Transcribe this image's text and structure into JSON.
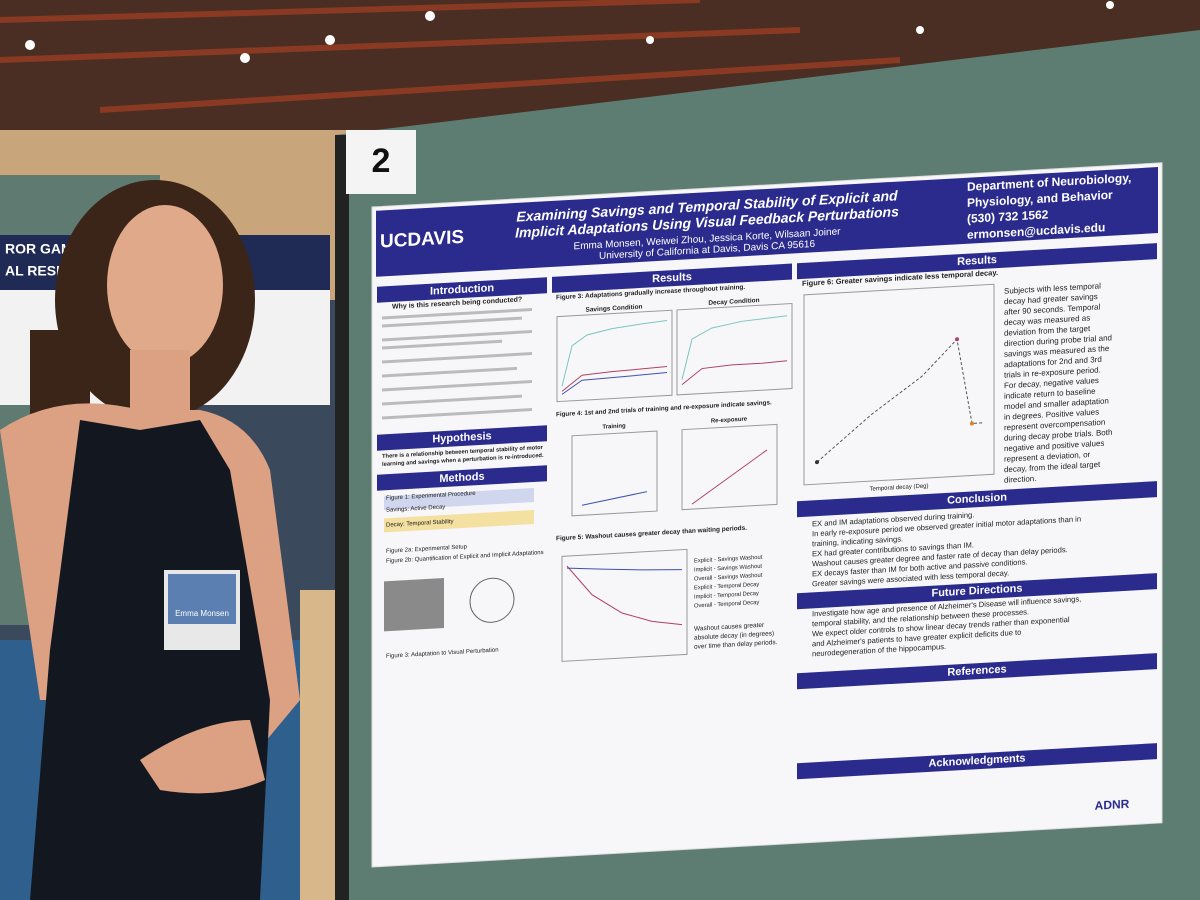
{
  "board_number": "2",
  "left_poster": {
    "lines": [
      "ROR GAME MUSIC ON",
      "AL RESPONSES OF"
    ]
  },
  "badge": {
    "name": "Emma Monsen"
  },
  "poster": {
    "logo": "UCDAVIS",
    "title": [
      "Examining Savings and Temporal Stability of Explicit and",
      "Implicit Adaptations Using Visual Feedback Perturbations"
    ],
    "authors": "Emma Monsen, Weiwei Zhou, Jessica Korte, Wilsaan Joiner",
    "affiliation": "University of California at Davis, Davis CA 95616",
    "department": [
      "Department of Neurobiology,",
      "Physiology, and Behavior",
      "(530) 732 1562",
      "ermonsen@ucdavis.edu"
    ],
    "introduction": {
      "heading": "Introduction",
      "question": "Why is this research being conducted?"
    },
    "hypothesis": {
      "heading": "Hypothesis",
      "lines": [
        "There is a relationship between temporal stability of motor",
        "learning and savings when a perturbation is re-introduced."
      ]
    },
    "methods": {
      "heading": "Methods",
      "items": [
        "Figure 1: Experimental Procedure",
        "Savings: Active Decay",
        "Decay: Temporal Stability",
        "Figure 2a: Experimental Setup",
        "Figure 2b: Quantification of Explicit and Implicit Adaptations",
        "Figure 3: Adaptation to Visual Perturbation"
      ]
    },
    "results_left": {
      "heading": "Results",
      "figure3": "Figure 3: Adaptations gradually increase throughout training.",
      "savings": "Savings Condition",
      "decay": "Decay Condition",
      "figure4": "Figure 4: 1st and 2nd trials of training and re-exposure indicate savings.",
      "training": "Training",
      "reexposure": "Re-exposure",
      "figure5": "Figure 5: Washout causes greater decay than waiting periods.",
      "legend": [
        "Explicit - Savings Washout",
        "Implicit - Savings Washout",
        "Overall - Savings Washout",
        "Explicit - Temporal Decay",
        "Implicit - Temporal Decay",
        "Overall - Temporal Decay"
      ],
      "washout_text": [
        "Washout causes greater",
        "absolute decay (in degrees)",
        "over time than delay periods."
      ]
    },
    "results_right": {
      "heading": "Results",
      "figure6": "Figure 6: Greater savings indicate less temporal decay.",
      "x_label": "Temporal decay (Deg)",
      "lines": [
        "Subjects with less temporal",
        "decay had greater savings",
        "after 90 seconds. Temporal",
        "decay was measured as",
        "deviation from the target",
        "direction during probe trial and",
        "savings was measured as the",
        "adaptations for 2nd and 3rd",
        "trials in re-exposure period.",
        "For decay, negative values",
        "indicate return to baseline",
        "model and smaller adaptation",
        "in degrees. Positive values",
        "represent overcompensation",
        "during decay probe trials. Both",
        "negative and positive values",
        "represent a deviation, or",
        "decay, from the ideal target",
        "direction."
      ]
    },
    "conclusion": {
      "heading": "Conclusion",
      "items": [
        "EX and IM adaptations observed during training.",
        "In early re-exposure period we observed greater initial motor adaptations than in",
        "training, indicating savings.",
        "EX had greater contributions to savings than IM.",
        "Washout causes greater degree and faster rate of decay than delay periods.",
        "EX decays faster than IM for both active and passive conditions.",
        "Greater savings were associated with less temporal decay."
      ]
    },
    "future": {
      "heading": "Future Directions",
      "items": [
        "Investigate how age and presence of Alzheimer's Disease will influence savings,",
        "temporal stability, and the relationship between these processes.",
        "We expect older controls to show linear decay trends rather than exponential",
        "and Alzheimer's patients to have greater explicit deficits due to",
        "neurodegeneration of the hippocampus."
      ]
    },
    "references": {
      "heading": "References"
    },
    "acknowledgments": {
      "heading": "Acknowledgments",
      "org": "ADNR"
    }
  }
}
